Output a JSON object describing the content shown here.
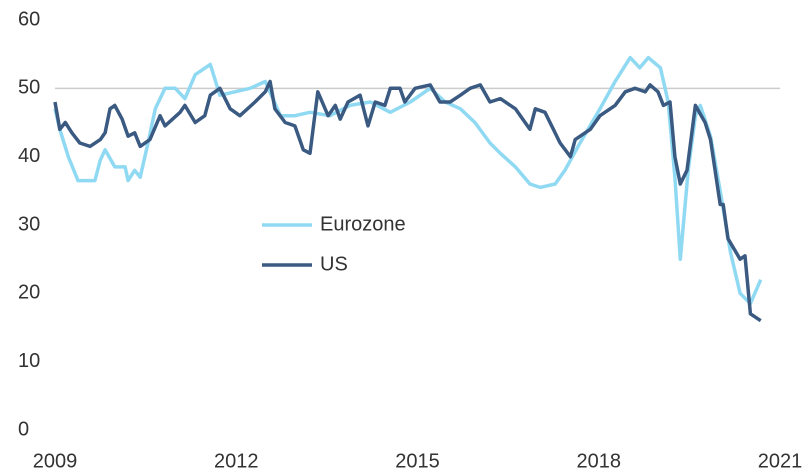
{
  "chart_data": {
    "type": "line",
    "xlim": [
      2009,
      2021
    ],
    "xticks": [
      2009,
      2012,
      2015,
      2018,
      2021
    ],
    "ylim": [
      0,
      60
    ],
    "yticks": [
      0,
      10,
      20,
      30,
      40,
      50,
      60
    ],
    "reference_line": 50,
    "legend": "center",
    "series": [
      {
        "name": "Eurozone",
        "color": "#8fd9f3",
        "x": [
          2009.0,
          2009.08,
          2009.22,
          2009.38,
          2009.66,
          2009.75,
          2009.83,
          2009.99,
          2010.16,
          2010.21,
          2010.32,
          2010.41,
          2010.54,
          2010.66,
          2010.82,
          2010.99,
          2011.15,
          2011.32,
          2011.57,
          2011.73,
          2011.98,
          2012.23,
          2012.48,
          2012.73,
          2012.97,
          2013.22,
          2013.55,
          2013.88,
          2014.22,
          2014.55,
          2014.88,
          2015.21,
          2015.46,
          2015.71,
          2015.95,
          2016.2,
          2016.37,
          2016.62,
          2016.86,
          2017.03,
          2017.28,
          2017.44,
          2017.69,
          2018.02,
          2018.27,
          2018.52,
          2018.68,
          2018.82,
          2019.02,
          2019.15,
          2019.26,
          2019.35,
          2019.48,
          2019.6,
          2019.68,
          2019.85,
          2020.01,
          2020.18,
          2020.34,
          2020.51,
          2020.68
        ],
        "values": [
          47,
          44,
          40,
          36.5,
          36.5,
          39.5,
          41,
          38.5,
          38.5,
          36.5,
          38,
          37,
          42,
          47,
          50,
          50,
          48.5,
          52,
          53.5,
          49,
          49.5,
          50,
          51,
          46,
          46,
          46.5,
          46,
          47.5,
          48,
          46.5,
          48,
          50,
          48,
          47,
          45,
          42,
          40.5,
          38.5,
          36,
          35.5,
          36,
          38,
          42,
          47,
          51,
          54.5,
          53,
          54.5,
          53,
          48,
          37,
          25,
          38,
          46,
          47.5,
          43,
          35,
          26,
          20,
          18.5,
          22
        ]
      },
      {
        "name": "US",
        "color": "#3b5a82",
        "x": [
          2009.0,
          2009.08,
          2009.17,
          2009.28,
          2009.41,
          2009.58,
          2009.75,
          2009.83,
          2009.91,
          2009.99,
          2010.11,
          2010.21,
          2010.32,
          2010.41,
          2010.57,
          2010.74,
          2010.82,
          2011.07,
          2011.15,
          2011.32,
          2011.48,
          2011.57,
          2011.73,
          2011.9,
          2012.06,
          2012.31,
          2012.48,
          2012.56,
          2012.64,
          2012.81,
          2012.97,
          2013.11,
          2013.22,
          2013.35,
          2013.52,
          2013.64,
          2013.72,
          2013.85,
          2014.05,
          2014.18,
          2014.3,
          2014.46,
          2014.55,
          2014.71,
          2014.79,
          2014.96,
          2015.21,
          2015.37,
          2015.54,
          2015.71,
          2015.87,
          2016.04,
          2016.2,
          2016.37,
          2016.62,
          2016.86,
          2016.95,
          2017.11,
          2017.36,
          2017.53,
          2017.61,
          2017.86,
          2018.02,
          2018.27,
          2018.44,
          2018.6,
          2018.77,
          2018.85,
          2018.98,
          2019.07,
          2019.18,
          2019.26,
          2019.35,
          2019.46,
          2019.6,
          2019.76,
          2019.85,
          2020.01,
          2020.06,
          2020.14,
          2020.34,
          2020.42,
          2020.51,
          2020.68
        ],
        "values": [
          48,
          44,
          45,
          43.5,
          42,
          41.5,
          42.5,
          43.5,
          47,
          47.5,
          45.5,
          43,
          43.5,
          41.5,
          42.5,
          46,
          44.5,
          46.5,
          47.5,
          45,
          46,
          49,
          50,
          47,
          46,
          48,
          49.5,
          51,
          47,
          45,
          44.5,
          41,
          40.5,
          49.5,
          46,
          47.5,
          45.5,
          48,
          49,
          44.5,
          48,
          47.5,
          50,
          50,
          48,
          50,
          50.5,
          48,
          48,
          49,
          50,
          50.5,
          48,
          48.5,
          47,
          44,
          47,
          46.5,
          42,
          40,
          42.5,
          44,
          46,
          47.5,
          49.5,
          50,
          49.5,
          50.5,
          49.5,
          47.5,
          48,
          40,
          36,
          38,
          47.5,
          45,
          42.5,
          33,
          33,
          28,
          25,
          25.5,
          17,
          16
        ]
      }
    ]
  }
}
